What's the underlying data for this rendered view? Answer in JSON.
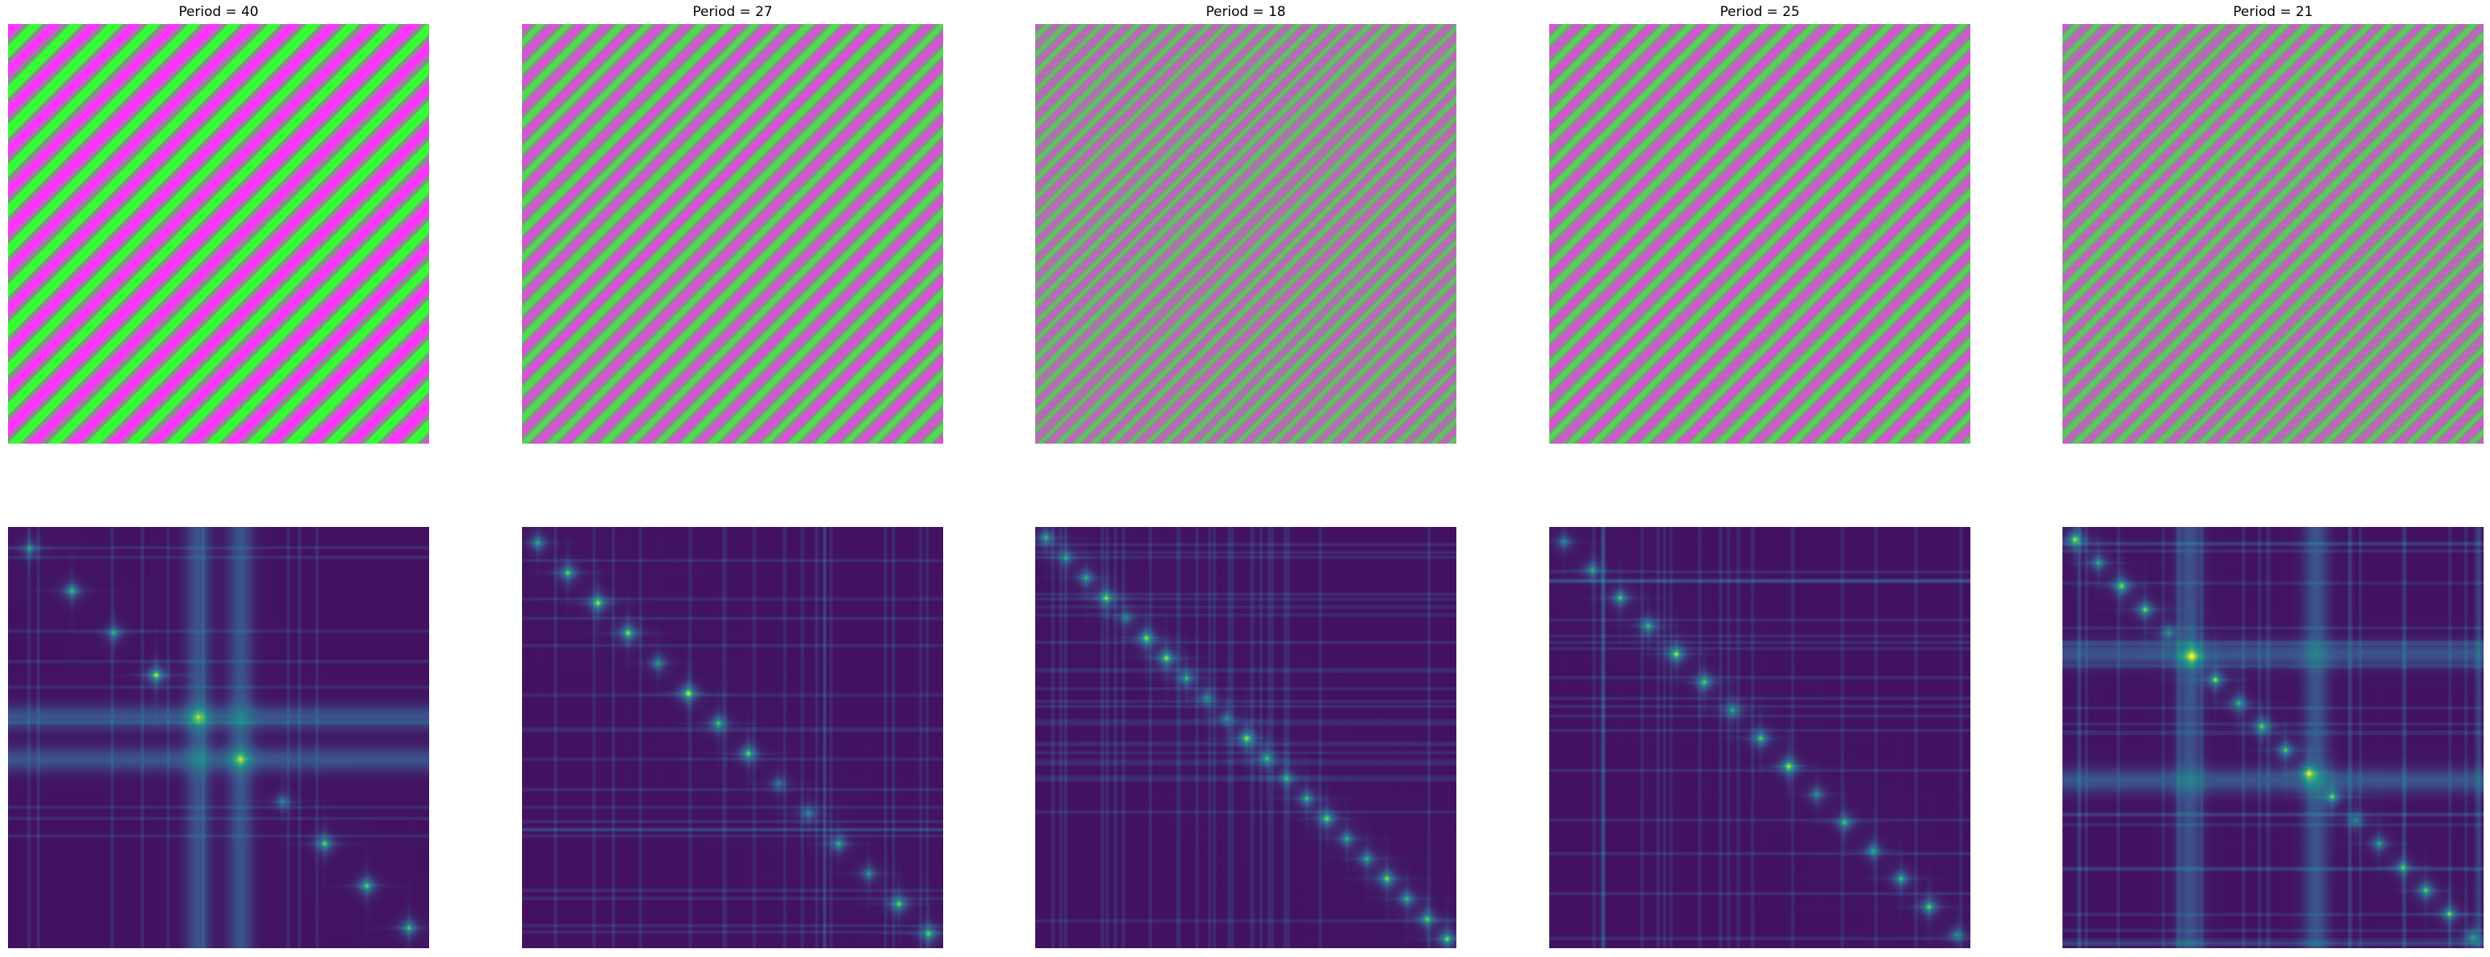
{
  "chart_data": {
    "type": "heatmap",
    "description_layout": "2 rows x 5 columns of image panels; top row shows diagonal stripe patterns with the given period, bottom row shows self-similarity heatmaps (viridis colormap) computed from the stripe images; axes hidden",
    "columns": [
      {
        "title": "Period = 40",
        "period": 40
      },
      {
        "title": "Period = 27",
        "period": 27
      },
      {
        "title": "Period = 18",
        "period": 18
      },
      {
        "title": "Period = 25",
        "period": 25
      },
      {
        "title": "Period = 21",
        "period": 21
      }
    ],
    "axes_visible": false,
    "grid": false,
    "colormap": "viridis",
    "stripe_colors": {
      "magenta": "#ff33ff",
      "green": "#33ff33",
      "gray": "#8c8c8c"
    },
    "colors": {
      "heat_background": "#440154",
      "heat_mid": "#3b528b",
      "heat_peak": "#21908d",
      "heat_highlight": "#5dc863"
    }
  }
}
